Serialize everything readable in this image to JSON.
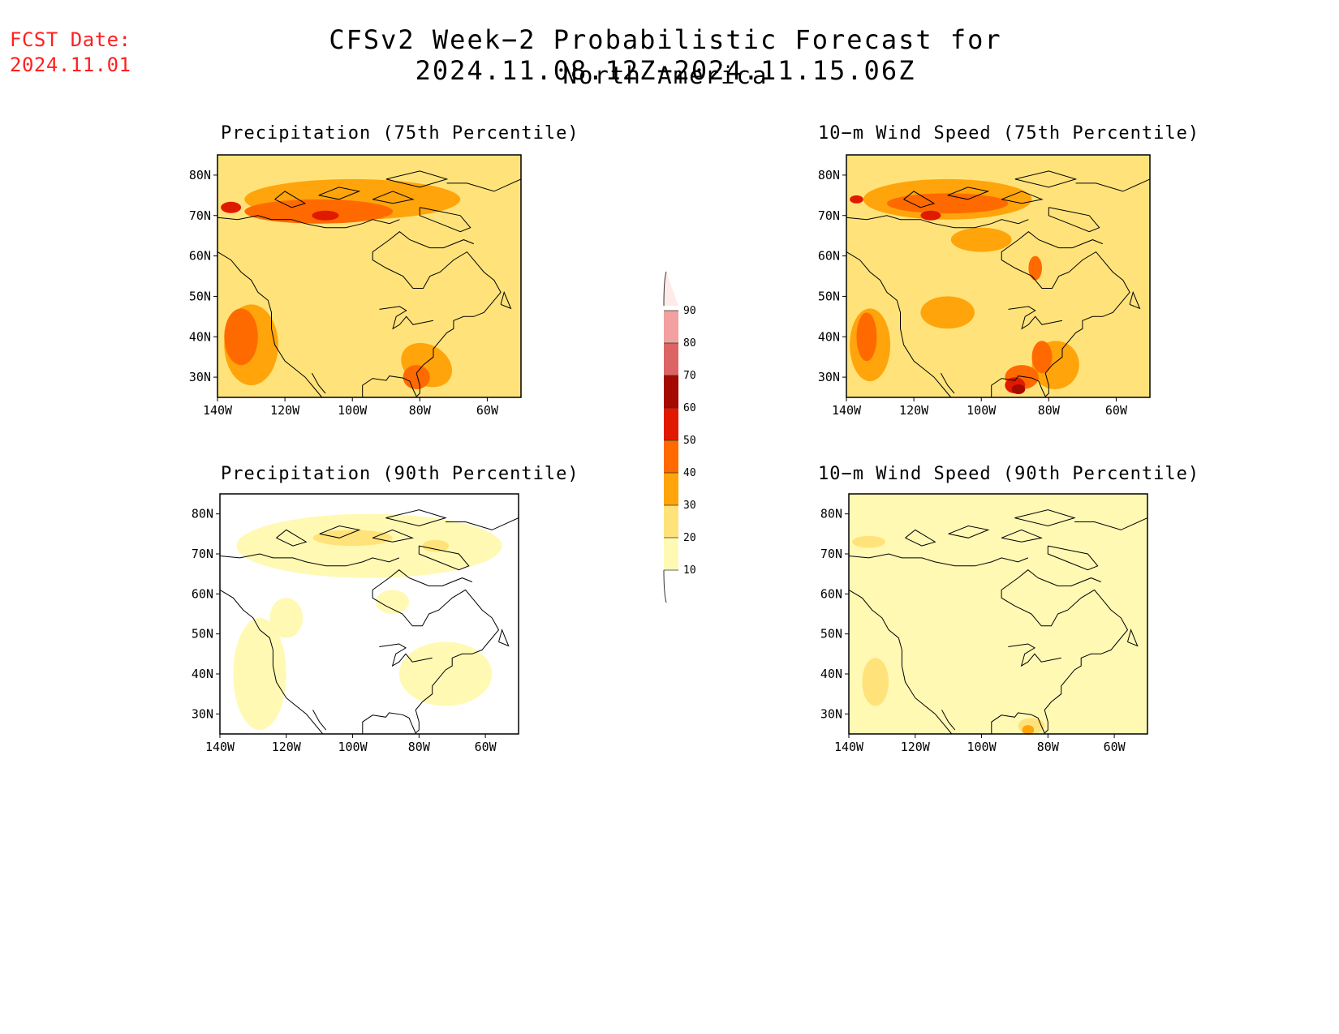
{
  "header": {
    "fcst_label": "FCST Date:",
    "fcst_date": "2024.11.01",
    "title": "CFSv2 Week−2 Probabilistic Forecast for 2024.11.08.12Z−2024.11.15.06Z",
    "subtitle": "North America"
  },
  "axes": {
    "lon_ticks": [
      "140W",
      "120W",
      "100W",
      "80W",
      "60W"
    ],
    "lat_ticks": [
      "80N",
      "70N",
      "60N",
      "50N",
      "40N",
      "30N"
    ]
  },
  "panels": [
    {
      "id": "precip-75",
      "title": "Precipitation (75th Percentile)",
      "dominant_level": 20,
      "max_level": 50
    },
    {
      "id": "wind-75",
      "title": "10−m Wind Speed (75th Percentile)",
      "dominant_level": 20,
      "max_level": 60
    },
    {
      "id": "precip-90",
      "title": "Precipitation (90th Percentile)",
      "dominant_level": 0,
      "max_level": 20
    },
    {
      "id": "wind-90",
      "title": "10−m Wind Speed (90th Percentile)",
      "dominant_level": 10,
      "max_level": 30
    }
  ],
  "colorbar": {
    "levels": [
      "10",
      "20",
      "30",
      "40",
      "50",
      "60",
      "70",
      "80",
      "90"
    ],
    "colors": [
      "#fff9b4",
      "#ffe37a",
      "#ffa40a",
      "#ff6a00",
      "#e01a00",
      "#a50a00",
      "#dc6464",
      "#f2a0a0",
      "#ffe6e6"
    ]
  }
}
